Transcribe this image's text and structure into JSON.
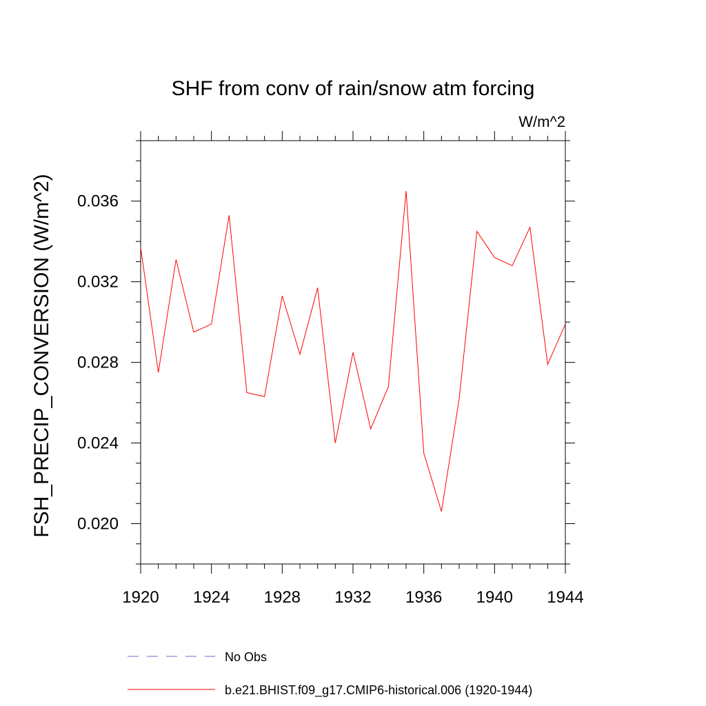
{
  "chart_data": {
    "type": "line",
    "title": "SHF from conv of rain/snow atm forcing",
    "units_label": "W/m^2",
    "xlabel": "",
    "ylabel": "FSH_PRECIP_CONVERSION  (W/m^2)",
    "xlim": [
      1920,
      1944
    ],
    "ylim": [
      0.018,
      0.039
    ],
    "x_ticks": [
      "1920",
      "1924",
      "1928",
      "1932",
      "1936",
      "1940",
      "1944"
    ],
    "y_ticks": [
      "0.020",
      "0.024",
      "0.028",
      "0.032",
      "0.036"
    ],
    "grid": false,
    "legend_position": "bottom",
    "series": [
      {
        "name": "No Obs",
        "color": "#6a6ad0",
        "dash": "dashed",
        "x": [],
        "y": []
      },
      {
        "name": "b.e21.BHIST.f09_g17.CMIP6-historical.006 (1920-1944)",
        "color": "#ff0000",
        "dash": "solid",
        "x": [
          1920,
          1921,
          1922,
          1923,
          1924,
          1925,
          1926,
          1927,
          1928,
          1929,
          1930,
          1931,
          1932,
          1933,
          1934,
          1935,
          1936,
          1937,
          1938,
          1939,
          1940,
          1941,
          1942,
          1943,
          1944
        ],
        "y": [
          0.0337,
          0.0275,
          0.0331,
          0.0295,
          0.0299,
          0.0353,
          0.0265,
          0.0263,
          0.0313,
          0.0284,
          0.0317,
          0.024,
          0.0285,
          0.0247,
          0.0268,
          0.0365,
          0.0235,
          0.0206,
          0.0262,
          0.0345,
          0.0332,
          0.0328,
          0.0347,
          0.0279,
          0.0299
        ]
      }
    ]
  }
}
